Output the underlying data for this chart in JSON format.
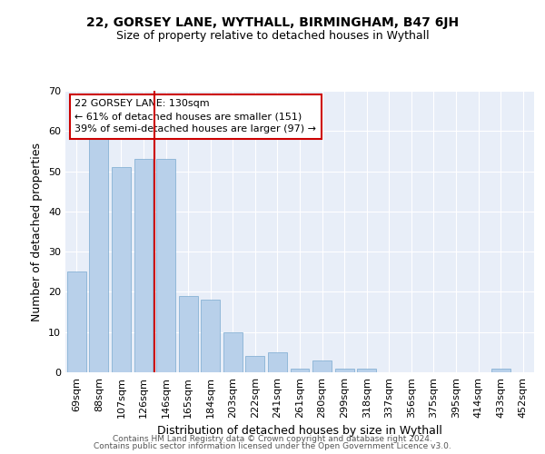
{
  "title1": "22, GORSEY LANE, WYTHALL, BIRMINGHAM, B47 6JH",
  "title2": "Size of property relative to detached houses in Wythall",
  "xlabel": "Distribution of detached houses by size in Wythall",
  "ylabel": "Number of detached properties",
  "footer1": "Contains HM Land Registry data © Crown copyright and database right 2024.",
  "footer2": "Contains public sector information licensed under the Open Government Licence v3.0.",
  "annotation_line1": "22 GORSEY LANE: 130sqm",
  "annotation_line2": "← 61% of detached houses are smaller (151)",
  "annotation_line3": "39% of semi-detached houses are larger (97) →",
  "bar_color": "#b8d0ea",
  "bar_edge_color": "#7aaad0",
  "redline_color": "#cc0000",
  "annotation_box_edgecolor": "#cc0000",
  "background_color": "#e8eef8",
  "grid_color": "#ffffff",
  "categories": [
    "69sqm",
    "88sqm",
    "107sqm",
    "126sqm",
    "146sqm",
    "165sqm",
    "184sqm",
    "203sqm",
    "222sqm",
    "241sqm",
    "261sqm",
    "280sqm",
    "299sqm",
    "318sqm",
    "337sqm",
    "356sqm",
    "375sqm",
    "395sqm",
    "414sqm",
    "433sqm",
    "452sqm"
  ],
  "values": [
    25,
    59,
    51,
    53,
    53,
    19,
    18,
    10,
    4,
    5,
    1,
    3,
    1,
    1,
    0,
    0,
    0,
    0,
    0,
    1,
    0
  ],
  "ylim": [
    0,
    70
  ],
  "yticks": [
    0,
    10,
    20,
    30,
    40,
    50,
    60,
    70
  ],
  "redline_bar_index": 3,
  "title1_fontsize": 10,
  "title2_fontsize": 9,
  "ylabel_fontsize": 9,
  "xlabel_fontsize": 9,
  "tick_fontsize": 8,
  "annotation_fontsize": 8,
  "footer_fontsize": 6.5
}
